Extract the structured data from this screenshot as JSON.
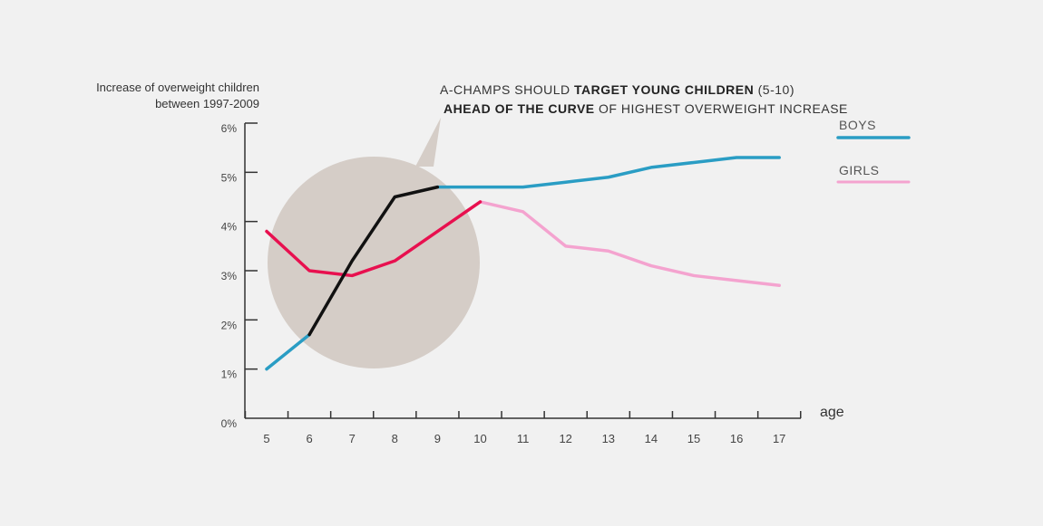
{
  "chart_data": {
    "type": "line",
    "ylabel": "Increase of overweight children between 1997-2009",
    "xlabel": "age",
    "categories": [
      5,
      6,
      7,
      8,
      9,
      10,
      11,
      12,
      13,
      14,
      15,
      16,
      17
    ],
    "ylim": [
      0,
      6
    ],
    "y_ticks": [
      "0%",
      "1%",
      "2%",
      "3%",
      "4%",
      "5%",
      "6%"
    ],
    "series": [
      {
        "name": "BOYS",
        "color": "#2a9dc4",
        "values": [
          1.0,
          1.7,
          3.2,
          4.5,
          4.7,
          4.7,
          4.7,
          4.8,
          4.9,
          5.1,
          5.2,
          5.3,
          5.3
        ]
      },
      {
        "name": "GIRLS",
        "color": "#f4a3cf",
        "values": [
          3.8,
          3.0,
          2.9,
          3.2,
          3.8,
          4.4,
          4.2,
          3.5,
          3.4,
          3.1,
          2.9,
          2.8,
          2.7
        ]
      }
    ],
    "highlight": {
      "age_range": [
        5,
        10
      ],
      "boys_color": "#111111",
      "girls_color": "#e8104f",
      "circle_color": "#d5cdc7"
    },
    "annotation": {
      "line1": {
        "pre": "A-CHAMPS SHOULD ",
        "bold": "TARGET YOUNG CHILDREN",
        "post": " (5-10)"
      },
      "line2": {
        "bold": "AHEAD OF THE CURVE",
        "post": " OF HIGHEST OVERWEIGHT INCREASE"
      }
    }
  }
}
